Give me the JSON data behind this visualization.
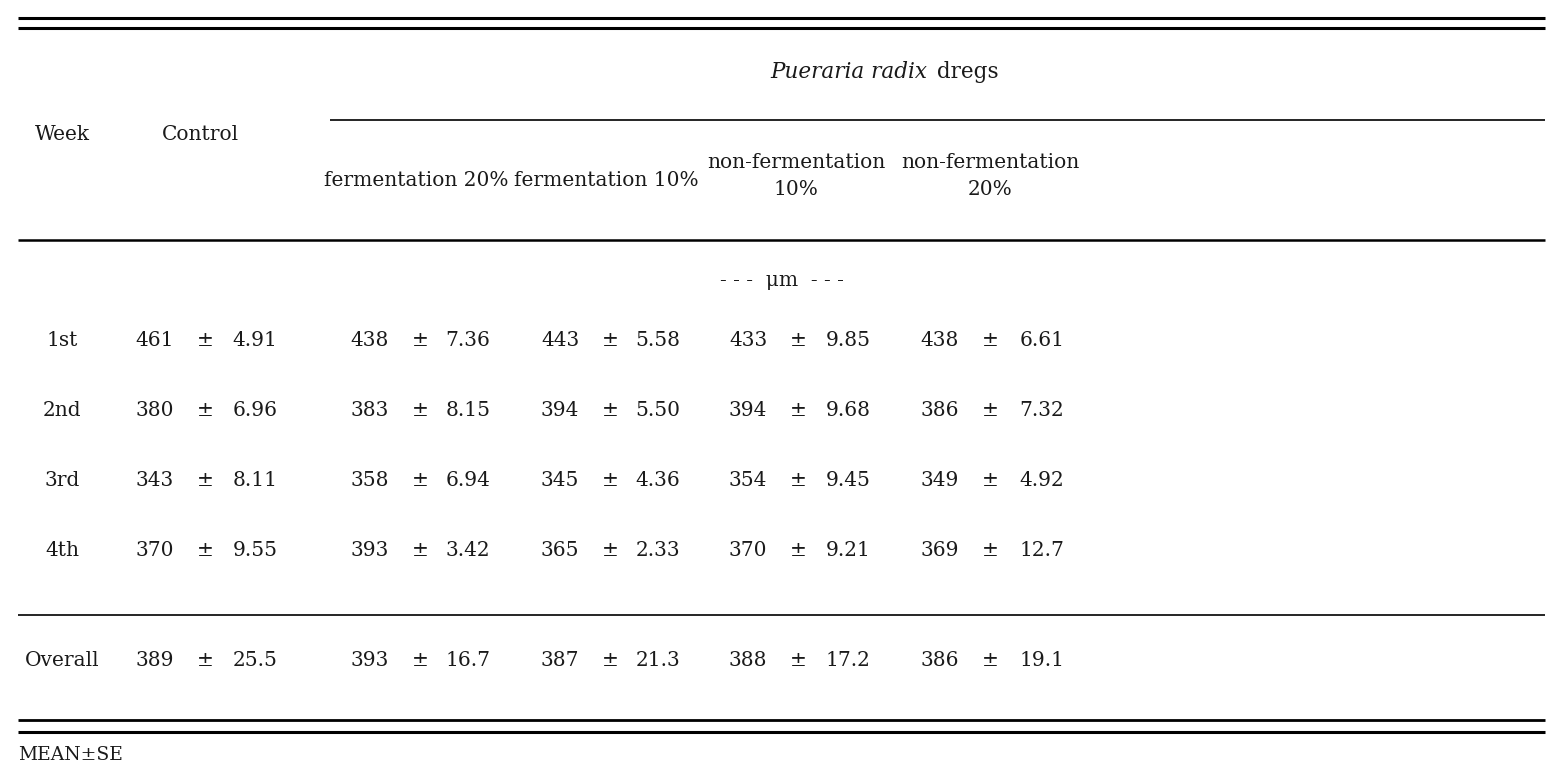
{
  "title_italic": "Pueraria radix",
  "title_normal": " dregs",
  "unit_label": "- - -  μm  - - -",
  "rows": [
    {
      "week": "1st",
      "ctrl": [
        "461",
        "±",
        "4.91"
      ],
      "f20": [
        "438",
        "±",
        "7.36"
      ],
      "f10": [
        "443",
        "±",
        "5.58"
      ],
      "nf10": [
        "433",
        "±",
        "9.85"
      ],
      "nf20": [
        "438",
        "±",
        "6.61"
      ]
    },
    {
      "week": "2nd",
      "ctrl": [
        "380",
        "±",
        "6.96"
      ],
      "f20": [
        "383",
        "±",
        "8.15"
      ],
      "f10": [
        "394",
        "±",
        "5.50"
      ],
      "nf10": [
        "394",
        "±",
        "9.68"
      ],
      "nf20": [
        "386",
        "±",
        "7.32"
      ]
    },
    {
      "week": "3rd",
      "ctrl": [
        "343",
        "±",
        "8.11"
      ],
      "f20": [
        "358",
        "±",
        "6.94"
      ],
      "f10": [
        "345",
        "±",
        "4.36"
      ],
      "nf10": [
        "354",
        "±",
        "9.45"
      ],
      "nf20": [
        "349",
        "±",
        "4.92"
      ]
    },
    {
      "week": "4th",
      "ctrl": [
        "370",
        "±",
        "9.55"
      ],
      "f20": [
        "393",
        "±",
        "3.42"
      ],
      "f10": [
        "365",
        "±",
        "2.33"
      ],
      "nf10": [
        "370",
        "±",
        "9.21"
      ],
      "nf20": [
        "369",
        "±",
        "12.7"
      ]
    },
    {
      "week": "Overall",
      "ctrl": [
        "389",
        "±",
        "25.5"
      ],
      "f20": [
        "393",
        "±",
        "16.7"
      ],
      "f10": [
        "387",
        "±",
        "21.3"
      ],
      "nf10": [
        "388",
        "±",
        "17.2"
      ],
      "nf20": [
        "386",
        "±",
        "19.1"
      ]
    }
  ],
  "footnote": "MEAN±SE",
  "bg_color": "#ffffff",
  "text_color": "#1a1a1a",
  "font_size": 14.5
}
